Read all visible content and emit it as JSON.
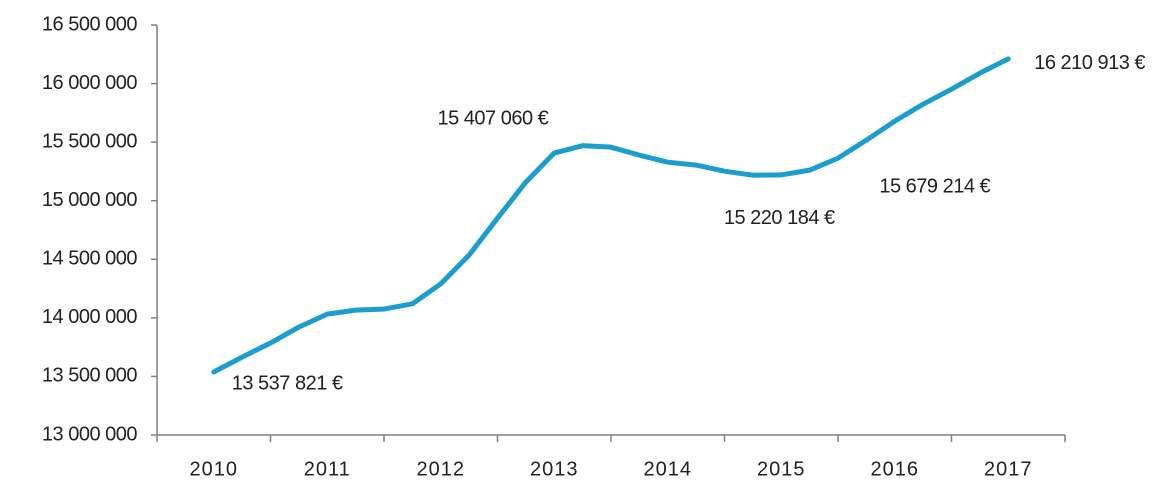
{
  "chart_data": {
    "type": "line",
    "x": [
      2010,
      2010.25,
      2010.5,
      2010.75,
      2011,
      2011.25,
      2011.5,
      2011.75,
      2012,
      2012.25,
      2012.5,
      2012.75,
      2013,
      2013.25,
      2013.5,
      2013.75,
      2014,
      2014.25,
      2014.5,
      2014.75,
      2015,
      2015.25,
      2015.5,
      2015.75,
      2016,
      2016.25,
      2016.5,
      2016.75,
      2017
    ],
    "series": [
      {
        "color": "#1b9dd0",
        "values": [
          13537821,
          13665000,
          13785000,
          13921000,
          14032000,
          14066000,
          14075000,
          14120000,
          14290000,
          14536000,
          14851000,
          15159000,
          15407060,
          15470000,
          15457000,
          15389000,
          15329000,
          15304000,
          15252000,
          15218000,
          15220184,
          15261000,
          15363000,
          15517000,
          15679214,
          15824000,
          15952000,
          16089000,
          16210913
        ],
        "value_labels": [
          "13 537 821 €",
          null,
          null,
          null,
          null,
          null,
          null,
          null,
          null,
          null,
          null,
          null,
          "15 407 060 €",
          null,
          null,
          null,
          null,
          null,
          null,
          null,
          "15 220 184 €",
          null,
          null,
          null,
          "15 679 214 €",
          null,
          null,
          null,
          "16 210 913 €"
        ]
      }
    ],
    "xlim": [
      2009.5,
      2017.5
    ],
    "xticks": [
      2010,
      2011,
      2012,
      2013,
      2014,
      2015,
      2016,
      2017
    ],
    "ylim": [
      13000000,
      16500000
    ],
    "yticks": [
      {
        "value": 13000000,
        "label": "13 000 000"
      },
      {
        "value": 13500000,
        "label": "13 500 000"
      },
      {
        "value": 14000000,
        "label": "14 000 000"
      },
      {
        "value": 14500000,
        "label": "14 500 000"
      },
      {
        "value": 15000000,
        "label": "15 000 000"
      },
      {
        "value": 15500000,
        "label": "15 500 000"
      },
      {
        "value": 16000000,
        "label": "16 000 000"
      },
      {
        "value": 16500000,
        "label": "16 500 000"
      }
    ],
    "grid": false
  }
}
